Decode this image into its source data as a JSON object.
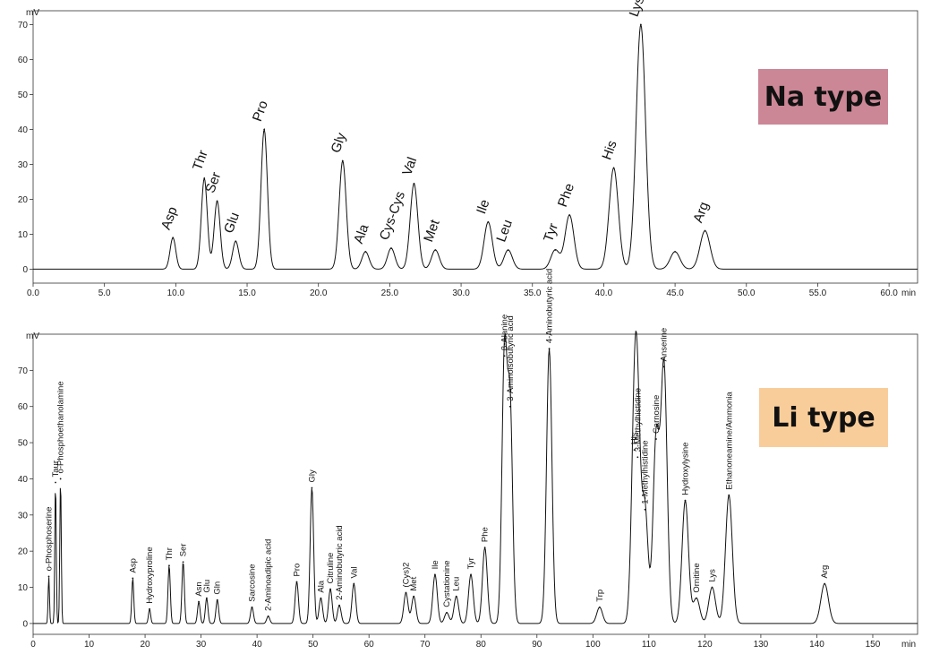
{
  "chart_data": [
    {
      "type": "line",
      "title": "",
      "badge": {
        "text": "Na type",
        "color": "#cc8796"
      },
      "xlabel": "min",
      "ylabel": "mV",
      "xlim": [
        0,
        62
      ],
      "ylim": [
        -4,
        74
      ],
      "xticks": [
        0,
        5,
        10,
        15,
        20,
        25,
        30,
        35,
        40,
        45,
        50,
        55,
        60
      ],
      "xtick_labels": [
        "0.0",
        "5.0",
        "10.0",
        "15.0",
        "20.0",
        "25.0",
        "30.0",
        "35.0",
        "40.0",
        "45.0",
        "50.0",
        "55.0",
        "60.0"
      ],
      "yticks": [
        0,
        10,
        20,
        30,
        40,
        50,
        60,
        70
      ],
      "grid": false,
      "peaks": [
        {
          "label": "Asp",
          "rt": 9.8,
          "height": 9
        },
        {
          "label": "Thr",
          "rt": 12.0,
          "height": 26
        },
        {
          "label": "Ser",
          "rt": 12.9,
          "height": 19.5
        },
        {
          "label": "Glu",
          "rt": 14.2,
          "height": 8
        },
        {
          "label": "Pro",
          "rt": 16.2,
          "height": 40
        },
        {
          "label": "Gly",
          "rt": 21.7,
          "height": 31
        },
        {
          "label": "Ala",
          "rt": 23.3,
          "height": 5
        },
        {
          "label": "Cys-Cys",
          "rt": 25.1,
          "height": 6
        },
        {
          "label": "Val",
          "rt": 26.7,
          "height": 24.5
        },
        {
          "label": "Met",
          "rt": 28.2,
          "height": 5.5
        },
        {
          "label": "Ile",
          "rt": 31.9,
          "height": 13.5
        },
        {
          "label": "Leu",
          "rt": 33.3,
          "height": 5.5
        },
        {
          "label": "Tyr",
          "rt": 36.6,
          "height": 5.5
        },
        {
          "label": "Phe",
          "rt": 37.6,
          "height": 15.5
        },
        {
          "label": "His",
          "rt": 40.7,
          "height": 29
        },
        {
          "label": "Lys",
          "rt": 42.6,
          "height": 70
        },
        {
          "label": "",
          "rt": 45.0,
          "height": 5
        },
        {
          "label": "Arg",
          "rt": 47.1,
          "height": 11
        }
      ]
    },
    {
      "type": "line",
      "title": "",
      "badge": {
        "text": "Li type",
        "color": "#f9cd9a"
      },
      "xlabel": "min",
      "ylabel": "mV",
      "xlim": [
        0,
        158
      ],
      "ylim": [
        -3,
        80
      ],
      "xticks": [
        0,
        10,
        20,
        30,
        40,
        50,
        60,
        70,
        80,
        90,
        100,
        110,
        120,
        130,
        140,
        150
      ],
      "xtick_labels": [
        "0",
        "10",
        "20",
        "30",
        "40",
        "50",
        "60",
        "70",
        "80",
        "90",
        "100",
        "110",
        "120",
        "130",
        "140",
        "150"
      ],
      "yticks": [
        0,
        10,
        20,
        30,
        40,
        50,
        60,
        70
      ],
      "grid": false,
      "peaks": [
        {
          "label": "o-Phosphoserine",
          "rt": 2.8,
          "height": 13
        },
        {
          "label": "Taur",
          "rt": 4.0,
          "height": 39
        },
        {
          "label": "o-Phosphoethanolamine",
          "rt": 4.9,
          "height": 40
        },
        {
          "label": "Asp",
          "rt": 17.8,
          "height": 12.5
        },
        {
          "label": "Hydroxyproline",
          "rt": 20.8,
          "height": 4
        },
        {
          "label": "Thr",
          "rt": 24.3,
          "height": 16
        },
        {
          "label": "Ser",
          "rt": 26.8,
          "height": 17
        },
        {
          "label": "Asn",
          "rt": 29.6,
          "height": 6
        },
        {
          "label": "Glu",
          "rt": 31.0,
          "height": 7
        },
        {
          "label": "Gln",
          "rt": 32.9,
          "height": 6.5
        },
        {
          "label": "Sarcosine",
          "rt": 39.1,
          "height": 4.5
        },
        {
          "label": "2-Aminoadipic acid",
          "rt": 42.0,
          "height": 2
        },
        {
          "label": "Pro",
          "rt": 47.1,
          "height": 11.5
        },
        {
          "label": "Gly",
          "rt": 49.8,
          "height": 37.5
        },
        {
          "label": "Ala",
          "rt": 51.4,
          "height": 7
        },
        {
          "label": "Citruline",
          "rt": 53.1,
          "height": 9.5
        },
        {
          "label": "2-Aminobutyric acid",
          "rt": 54.7,
          "height": 5
        },
        {
          "label": "Val",
          "rt": 57.3,
          "height": 11
        },
        {
          "label": "(Cys)2",
          "rt": 66.6,
          "height": 8.5
        },
        {
          "label": "Met",
          "rt": 68.0,
          "height": 7.5
        },
        {
          "label": "Ile",
          "rt": 71.8,
          "height": 13.5
        },
        {
          "label": "Cystationine",
          "rt": 73.9,
          "height": 3
        },
        {
          "label": "Leu",
          "rt": 75.6,
          "height": 7.5
        },
        {
          "label": "Tyr",
          "rt": 78.2,
          "height": 13.5
        },
        {
          "label": "Phe",
          "rt": 80.7,
          "height": 21
        },
        {
          "label": "β-Alanine",
          "rt": 84.2,
          "height": 74
        },
        {
          "label": "3-Aminoisobutyric acid",
          "rt": 85.2,
          "height": 60
        },
        {
          "label": "4-Aminobutyric acid",
          "rt": 92.2,
          "height": 76
        },
        {
          "label": "Trp",
          "rt": 101.2,
          "height": 4.5
        },
        {
          "label": "His",
          "rt": 107.4,
          "height": 48
        },
        {
          "label": "3-Methylhistidine",
          "rt": 108.0,
          "height": 46
        },
        {
          "label": "1-Methylhistidine",
          "rt": 109.3,
          "height": 31.5
        },
        {
          "label": "Carnosine",
          "rt": 111.3,
          "height": 51
        },
        {
          "label": "Anserine",
          "rt": 112.7,
          "height": 71
        },
        {
          "label": "Hydroxylysine",
          "rt": 116.5,
          "height": 34
        },
        {
          "label": "Ornitine",
          "rt": 118.5,
          "height": 7
        },
        {
          "label": "Lys",
          "rt": 121.3,
          "height": 10
        },
        {
          "label": "Ethanoneamine/Ammonia",
          "rt": 124.3,
          "height": 35.5
        },
        {
          "label": "Arg",
          "rt": 141.4,
          "height": 11
        }
      ]
    }
  ]
}
